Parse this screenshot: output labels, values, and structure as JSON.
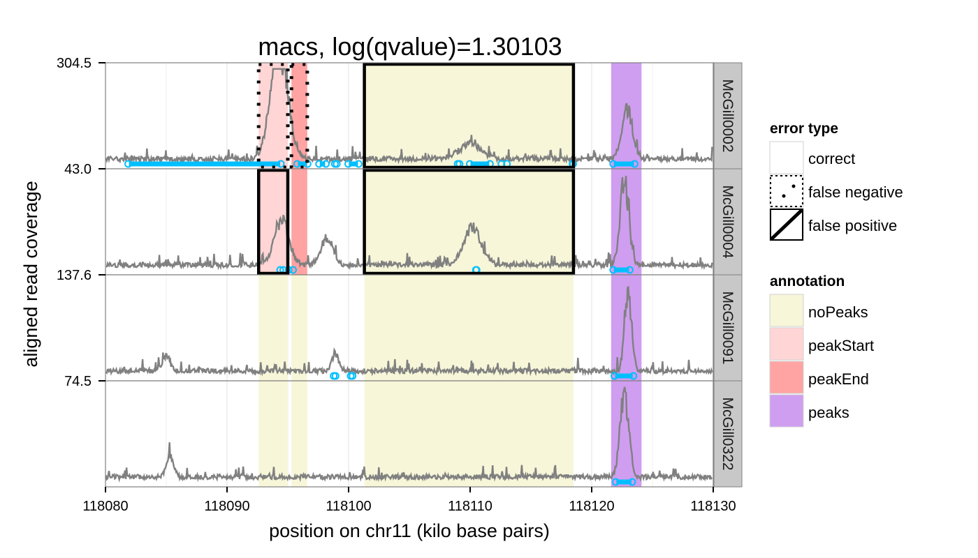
{
  "chart_data": {
    "type": "line",
    "title": "macs, log(qvalue)=1.30103",
    "xlabel": "position on chr11 (kilo base pairs)",
    "ylabel": "aligned read coverage",
    "xlim": [
      118080,
      118130
    ],
    "xticks": [
      "118080",
      "118090",
      "118100",
      "118110",
      "118120",
      "118130"
    ],
    "panels": [
      {
        "name": "McGill0002",
        "ymax_label": "304.5"
      },
      {
        "name": "McGill0004",
        "ymax_label": "43.0"
      },
      {
        "name": "McGill0091",
        "ymax_label": "137.6"
      },
      {
        "name": "McGill0322",
        "ymax_label": "74.5"
      }
    ],
    "annotations_by_panel": [
      [
        {
          "start": 118092.6,
          "end": 118095.0,
          "annotation": "peakStart",
          "error": "false negative"
        },
        {
          "start": 118095.3,
          "end": 118096.6,
          "annotation": "peakEnd",
          "error": "false negative"
        },
        {
          "start": 118101.3,
          "end": 118118.5,
          "annotation": "noPeaks",
          "error": "false positive"
        },
        {
          "start": 118121.6,
          "end": 118124.1,
          "annotation": "peaks",
          "error": "correct"
        }
      ],
      [
        {
          "start": 118092.6,
          "end": 118095.0,
          "annotation": "peakStart",
          "error": "false positive"
        },
        {
          "start": 118095.3,
          "end": 118096.6,
          "annotation": "peakEnd",
          "error": "correct"
        },
        {
          "start": 118101.3,
          "end": 118118.5,
          "annotation": "noPeaks",
          "error": "false positive"
        },
        {
          "start": 118121.6,
          "end": 118124.1,
          "annotation": "peaks",
          "error": "correct"
        }
      ],
      [
        {
          "start": 118092.6,
          "end": 118095.0,
          "annotation": "noPeaks",
          "error": "correct"
        },
        {
          "start": 118095.3,
          "end": 118096.6,
          "annotation": "noPeaks",
          "error": "correct"
        },
        {
          "start": 118101.3,
          "end": 118118.5,
          "annotation": "noPeaks",
          "error": "correct"
        },
        {
          "start": 118121.6,
          "end": 118124.1,
          "annotation": "peaks",
          "error": "correct"
        }
      ],
      [
        {
          "start": 118092.6,
          "end": 118095.0,
          "annotation": "noPeaks",
          "error": "correct"
        },
        {
          "start": 118095.3,
          "end": 118096.6,
          "annotation": "noPeaks",
          "error": "correct"
        },
        {
          "start": 118101.3,
          "end": 118118.5,
          "annotation": "noPeaks",
          "error": "correct"
        },
        {
          "start": 118121.6,
          "end": 118124.1,
          "annotation": "peaks",
          "error": "correct"
        }
      ]
    ],
    "peaks_by_panel": [
      [
        [
          118081.7,
          118094.6
        ],
        [
          118095.6,
          118096.8
        ],
        [
          118097.4,
          118098.3
        ],
        [
          118098.7,
          118099.2
        ],
        [
          118099.8,
          118101.0
        ],
        [
          118108.8,
          118109.3
        ],
        [
          118109.8,
          118111.8
        ],
        [
          118112.4,
          118113.2
        ],
        [
          118118.3,
          118118.6
        ],
        [
          118121.6,
          118123.7
        ]
      ],
      [
        [
          118094.2,
          118094.8
        ],
        [
          118094.9,
          118095.6
        ],
        [
          118110.3,
          118110.7
        ],
        [
          118121.6,
          118123.3
        ]
      ],
      [
        [
          118098.6,
          118099.1
        ],
        [
          118100.0,
          118100.5
        ],
        [
          118121.7,
          118123.6
        ]
      ],
      [
        [
          118121.8,
          118123.5
        ]
      ]
    ],
    "coverage_peaks_by_panel": [
      [
        {
          "center": 118094.5,
          "height": 0.97,
          "width": 0.9
        },
        {
          "center": 118093.8,
          "height": 0.45,
          "width": 0.8
        },
        {
          "center": 118110.0,
          "height": 0.18,
          "width": 1.2
        },
        {
          "center": 118122.9,
          "height": 0.58,
          "width": 0.6
        }
      ],
      [
        {
          "center": 118094.5,
          "height": 0.55,
          "width": 0.8
        },
        {
          "center": 118110.2,
          "height": 0.42,
          "width": 1.0
        },
        {
          "center": 118098.2,
          "height": 0.3,
          "width": 0.7
        },
        {
          "center": 118122.7,
          "height": 0.95,
          "width": 0.5
        }
      ],
      [
        {
          "center": 118123.0,
          "height": 0.92,
          "width": 0.4
        },
        {
          "center": 118098.9,
          "height": 0.2,
          "width": 0.4
        },
        {
          "center": 118085.0,
          "height": 0.15,
          "width": 0.5
        }
      ],
      [
        {
          "center": 118122.7,
          "height": 0.92,
          "width": 0.5
        },
        {
          "center": 118085.3,
          "height": 0.25,
          "width": 0.4
        }
      ]
    ],
    "grid": true,
    "legend_position": "right"
  },
  "legend": {
    "error_title": "error type",
    "error_items": [
      {
        "label": "correct",
        "style": "none"
      },
      {
        "label": "false negative",
        "style": "dotted"
      },
      {
        "label": "false positive",
        "style": "solid"
      }
    ],
    "annotation_title": "annotation",
    "annotation_items": [
      {
        "label": "noPeaks",
        "color": "#f7f6d9"
      },
      {
        "label": "peakStart",
        "color": "#ffd5d5"
      },
      {
        "label": "peakEnd",
        "color": "#ffa3a3"
      },
      {
        "label": "peaks",
        "color": "#cf9ef0"
      }
    ]
  },
  "colors": {
    "coverage": "#808080",
    "peak_call": "#00bfff",
    "noPeaks": "#f7f6d9",
    "peakStart": "#ffd5d5",
    "peakEnd": "#ffa3a3",
    "peaks": "#cf9ef0",
    "strip": "#c8c8c8"
  }
}
